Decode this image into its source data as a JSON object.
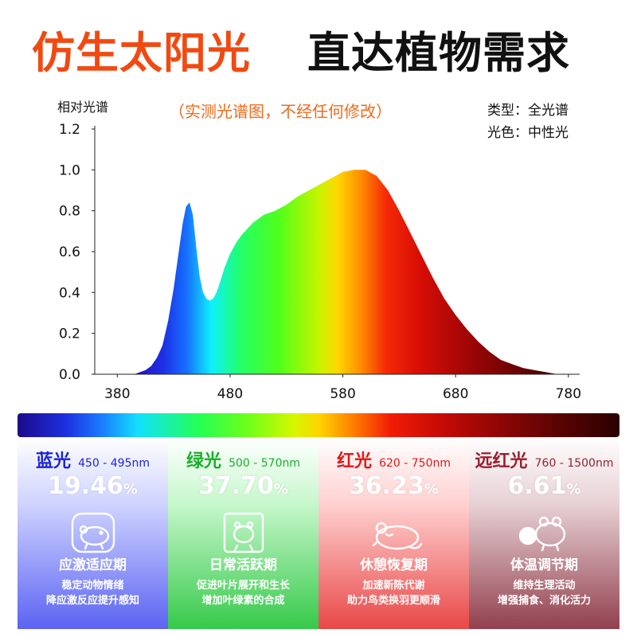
{
  "header": {
    "title_left": "仿生太阳光",
    "title_right": "直达植物需求"
  },
  "chart_data": {
    "type": "area",
    "subtitle": "（实测光谱图，不经任何修改）",
    "ylabel": "相对光谱",
    "xlabel": "",
    "xlim": [
      360,
      790
    ],
    "ylim": [
      0,
      1.2
    ],
    "x_ticks": [
      380,
      480,
      580,
      680,
      780
    ],
    "y_ticks": [
      "0.0",
      "0.2",
      "0.4",
      "0.6",
      "0.8",
      "1.0",
      "1.2"
    ],
    "grid": false,
    "x": [
      380,
      395,
      400,
      405,
      410,
      415,
      420,
      425,
      430,
      435,
      438,
      441,
      444,
      447,
      450,
      453,
      456,
      459,
      462,
      465,
      468,
      471,
      475,
      480,
      485,
      490,
      495,
      500,
      510,
      520,
      530,
      540,
      550,
      560,
      570,
      580,
      590,
      600,
      610,
      620,
      630,
      640,
      650,
      660,
      670,
      680,
      690,
      700,
      710,
      720,
      730,
      740,
      750,
      760,
      770,
      780
    ],
    "y": [
      0.0,
      0.0,
      0.01,
      0.02,
      0.04,
      0.08,
      0.14,
      0.26,
      0.42,
      0.62,
      0.74,
      0.82,
      0.84,
      0.78,
      0.62,
      0.48,
      0.4,
      0.37,
      0.36,
      0.37,
      0.4,
      0.45,
      0.52,
      0.59,
      0.64,
      0.68,
      0.71,
      0.74,
      0.78,
      0.8,
      0.83,
      0.87,
      0.9,
      0.93,
      0.96,
      0.99,
      1.0,
      1.0,
      0.97,
      0.9,
      0.8,
      0.69,
      0.58,
      0.47,
      0.37,
      0.29,
      0.22,
      0.16,
      0.11,
      0.07,
      0.05,
      0.03,
      0.02,
      0.01,
      0.0,
      0.0
    ]
  },
  "info": {
    "type_line": "类型：全光谱",
    "color_line": "光色：中性光"
  },
  "bands": [
    {
      "name": "蓝光",
      "range": "450 - 495nm",
      "percent": "19.46",
      "symbol": "%",
      "stage": "应激适应期",
      "desc1": "稳定动物情绪",
      "desc2": "降应激反应提升感知",
      "color": "#1a23d8",
      "icon": "hamster-icon"
    },
    {
      "name": "绿光",
      "range": "500 - 570nm",
      "percent": "37.70",
      "symbol": "%",
      "stage": "日常活跃期",
      "desc1": "促进叶片展开和生长",
      "desc2": "增加叶绿素的合成",
      "color": "#16b02a",
      "icon": "hamster-in-frame-icon"
    },
    {
      "name": "红光",
      "range": "620 - 750nm",
      "percent": "36.23",
      "symbol": "%",
      "stage": "休憩恢复期",
      "desc1": "加速新陈代谢",
      "desc2": "助力鸟类换羽更顺滑",
      "color": "#e01818",
      "icon": "sleeping-mouse-icon"
    },
    {
      "name": "远红光",
      "range": "760 - 1500nm",
      "percent": "6.61",
      "symbol": "%",
      "stage": "体温调节期",
      "desc1": "维持生理活动",
      "desc2": "增强捕食、消化活力",
      "color": "#9a1f2e",
      "icon": "hamster-with-ball-icon"
    }
  ]
}
